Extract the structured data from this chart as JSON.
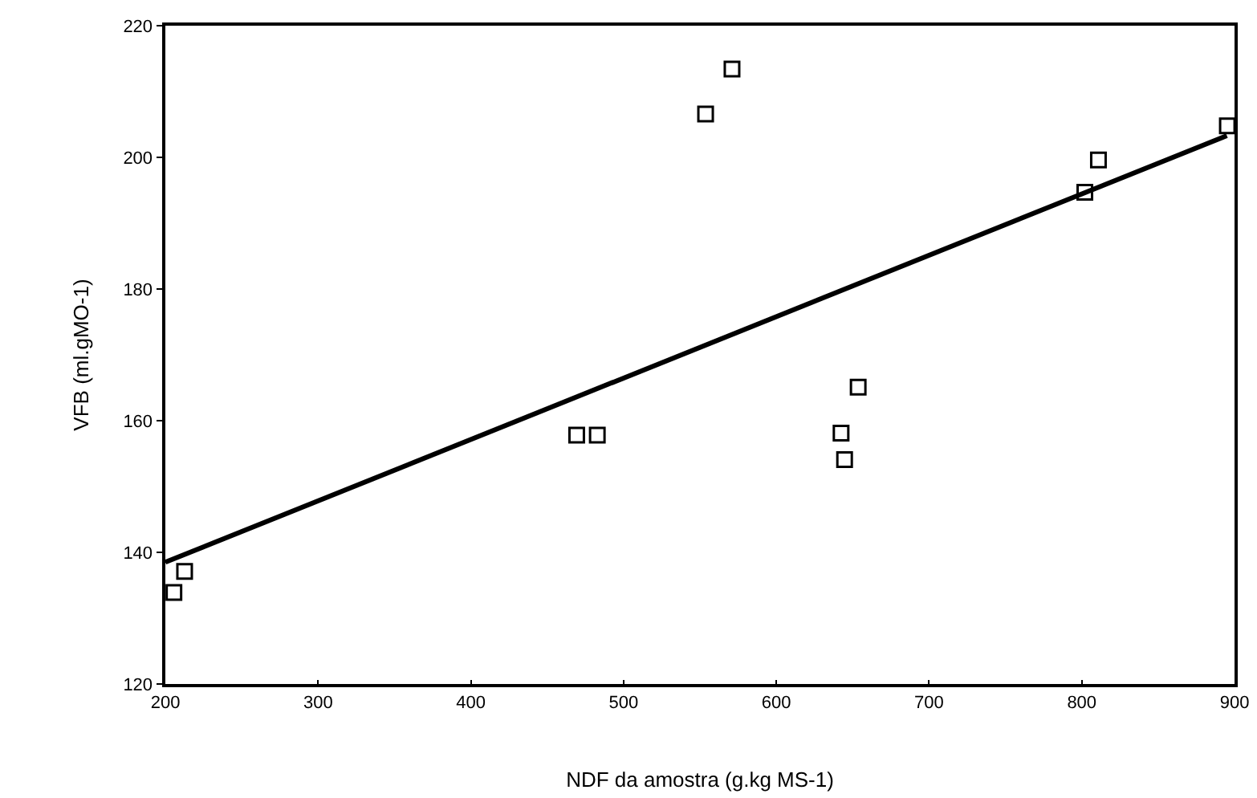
{
  "chart_data": {
    "type": "scatter",
    "xlabel": "NDF da amostra (g.kg MS-1)",
    "ylabel": "VFB (ml.gMO-1)",
    "xlim": [
      200,
      900
    ],
    "xticks": [
      200,
      300,
      400,
      500,
      600,
      700,
      800,
      900
    ],
    "ylim": [
      120,
      220
    ],
    "yticks": [
      120,
      140,
      160,
      180,
      200,
      220
    ],
    "grid": false,
    "legend": false,
    "marker": "square",
    "series": [
      {
        "color": "#000000",
        "x": [
          205.6,
          212.6,
          469.3,
          482.8,
          553.7,
          571,
          642.4,
          644.7,
          653.6,
          802,
          810.9,
          895.3
        ],
        "values": [
          133.9,
          137.1,
          157.8,
          157.8,
          206.6,
          213.4,
          158.1,
          154.1,
          165.1,
          194.7,
          199.6,
          204.8
        ]
      },
      {
        "type": "line",
        "color": "#000000",
        "marker": "none",
        "line_style": "solid",
        "x": [
          200,
          895
        ],
        "values": [
          138.5,
          203.3
        ]
      }
    ]
  }
}
